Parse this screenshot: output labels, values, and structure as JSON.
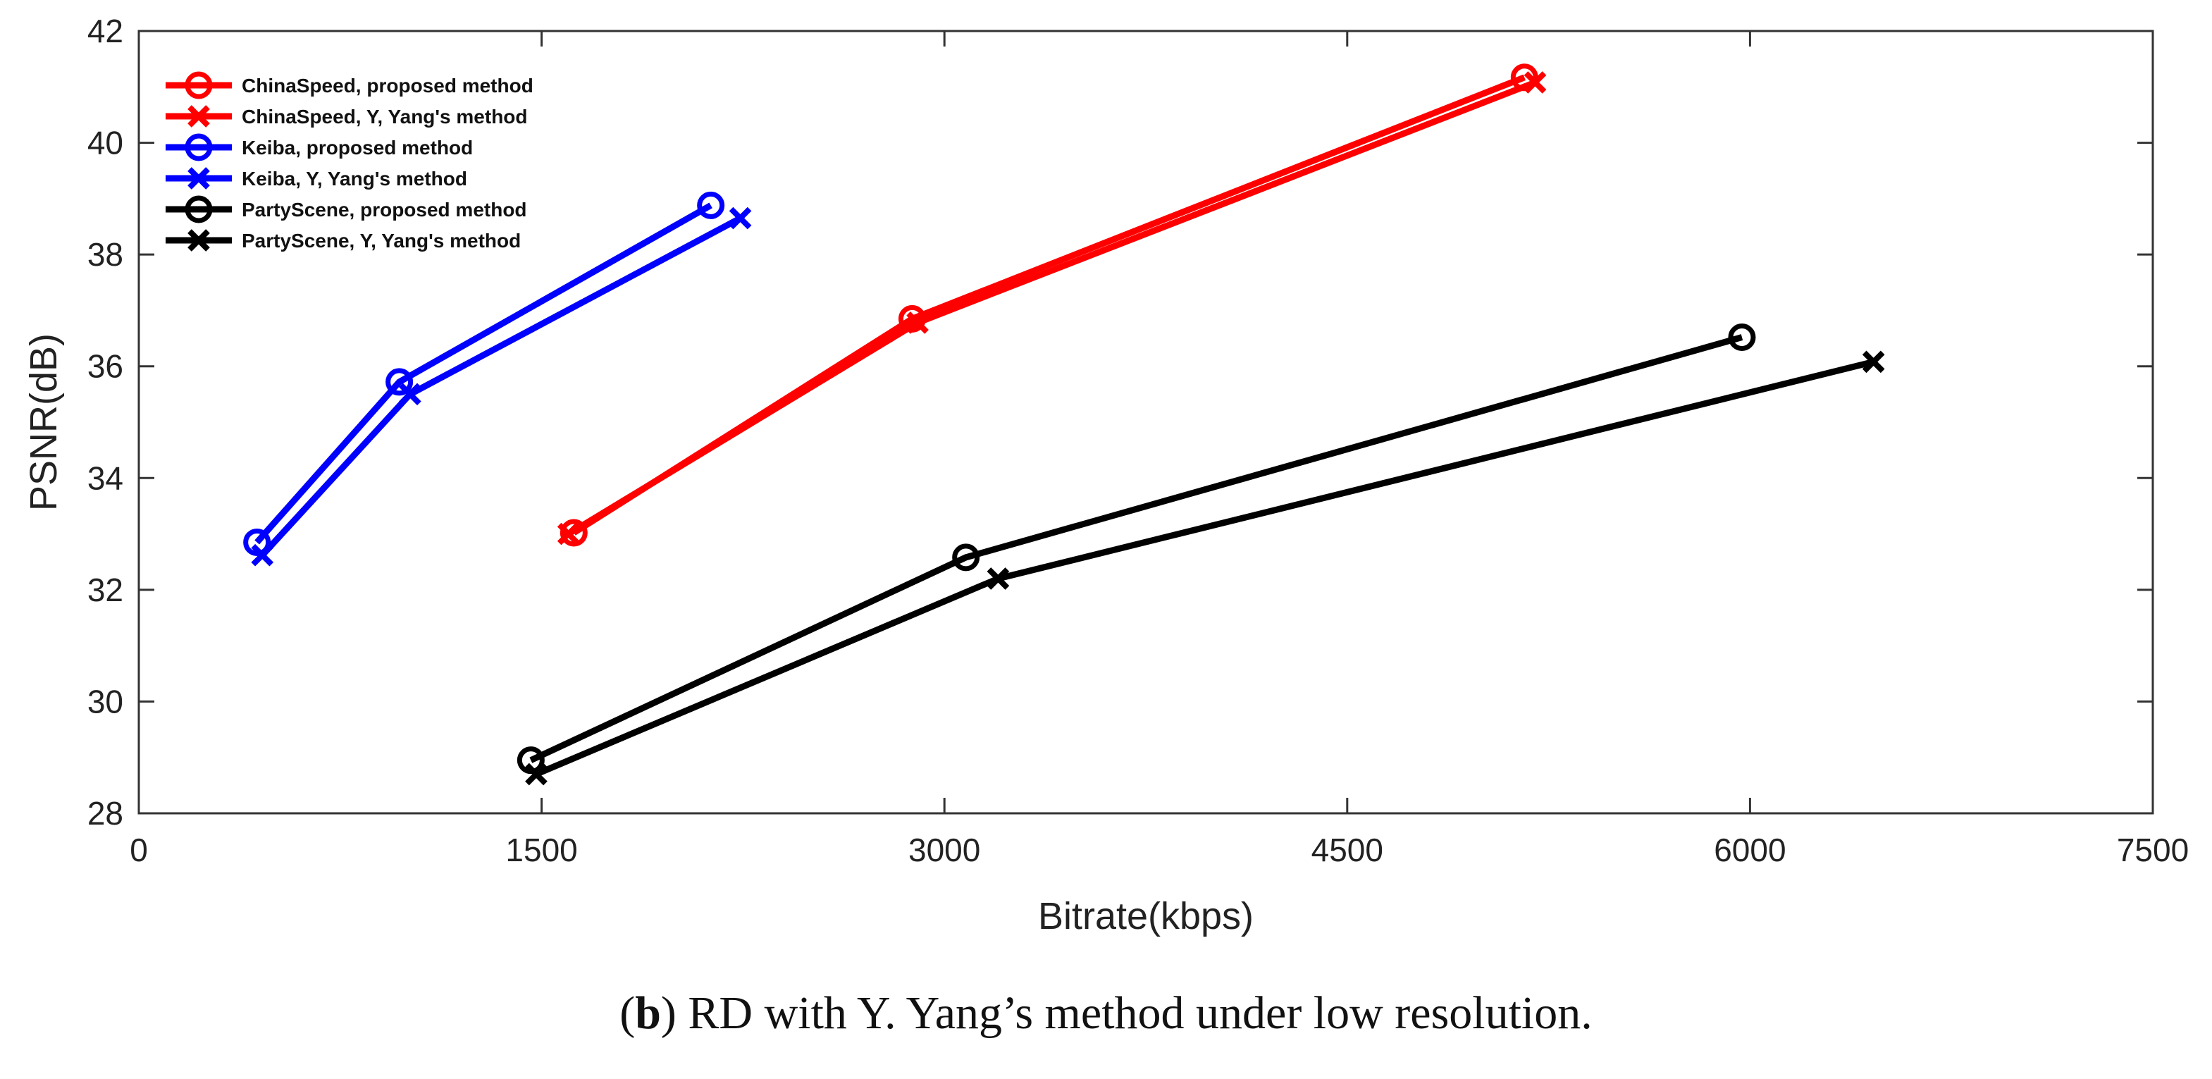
{
  "chart_data": {
    "type": "line",
    "title": "",
    "xlabel": "Bitrate(kbps)",
    "ylabel": "PSNR(dB)",
    "xlim": [
      0,
      7500
    ],
    "ylim": [
      28,
      42
    ],
    "xticks": [
      0,
      1500,
      3000,
      4500,
      6000,
      7500
    ],
    "yticks": [
      28,
      30,
      32,
      34,
      36,
      38,
      40,
      42
    ],
    "legend_position": "top-left",
    "series": [
      {
        "name": "ChinaSpeed, proposed method",
        "color": "#ff0000",
        "marker": "circle",
        "x": [
          1620,
          2880,
          5160
        ],
        "y": [
          33.02,
          36.85,
          41.17
        ]
      },
      {
        "name": "ChinaSpeed, Y, Yang's method",
        "color": "#ff0000",
        "marker": "x",
        "x": [
          1600,
          2900,
          5200
        ],
        "y": [
          33.0,
          36.78,
          41.08
        ]
      },
      {
        "name": "Keiba, proposed method",
        "color": "#0000ff",
        "marker": "circle",
        "x": [
          440,
          970,
          2130
        ],
        "y": [
          32.85,
          35.72,
          38.88
        ]
      },
      {
        "name": "Keiba, Y, Yang's method",
        "color": "#0000ff",
        "marker": "x",
        "x": [
          460,
          1010,
          2240
        ],
        "y": [
          32.62,
          35.5,
          38.65
        ]
      },
      {
        "name": "PartyScene, proposed method",
        "color": "#000000",
        "marker": "circle",
        "x": [
          1460,
          3080,
          5970
        ],
        "y": [
          28.95,
          32.58,
          36.52
        ]
      },
      {
        "name": "PartyScene, Y, Yang's method",
        "color": "#000000",
        "marker": "x",
        "x": [
          1480,
          3200,
          6460
        ],
        "y": [
          28.7,
          32.2,
          36.08
        ]
      }
    ]
  },
  "caption": {
    "prefix_open": "(",
    "letter": "b",
    "prefix_close": ")",
    "text": " RD with Y. Yang’s method under low resolution."
  }
}
